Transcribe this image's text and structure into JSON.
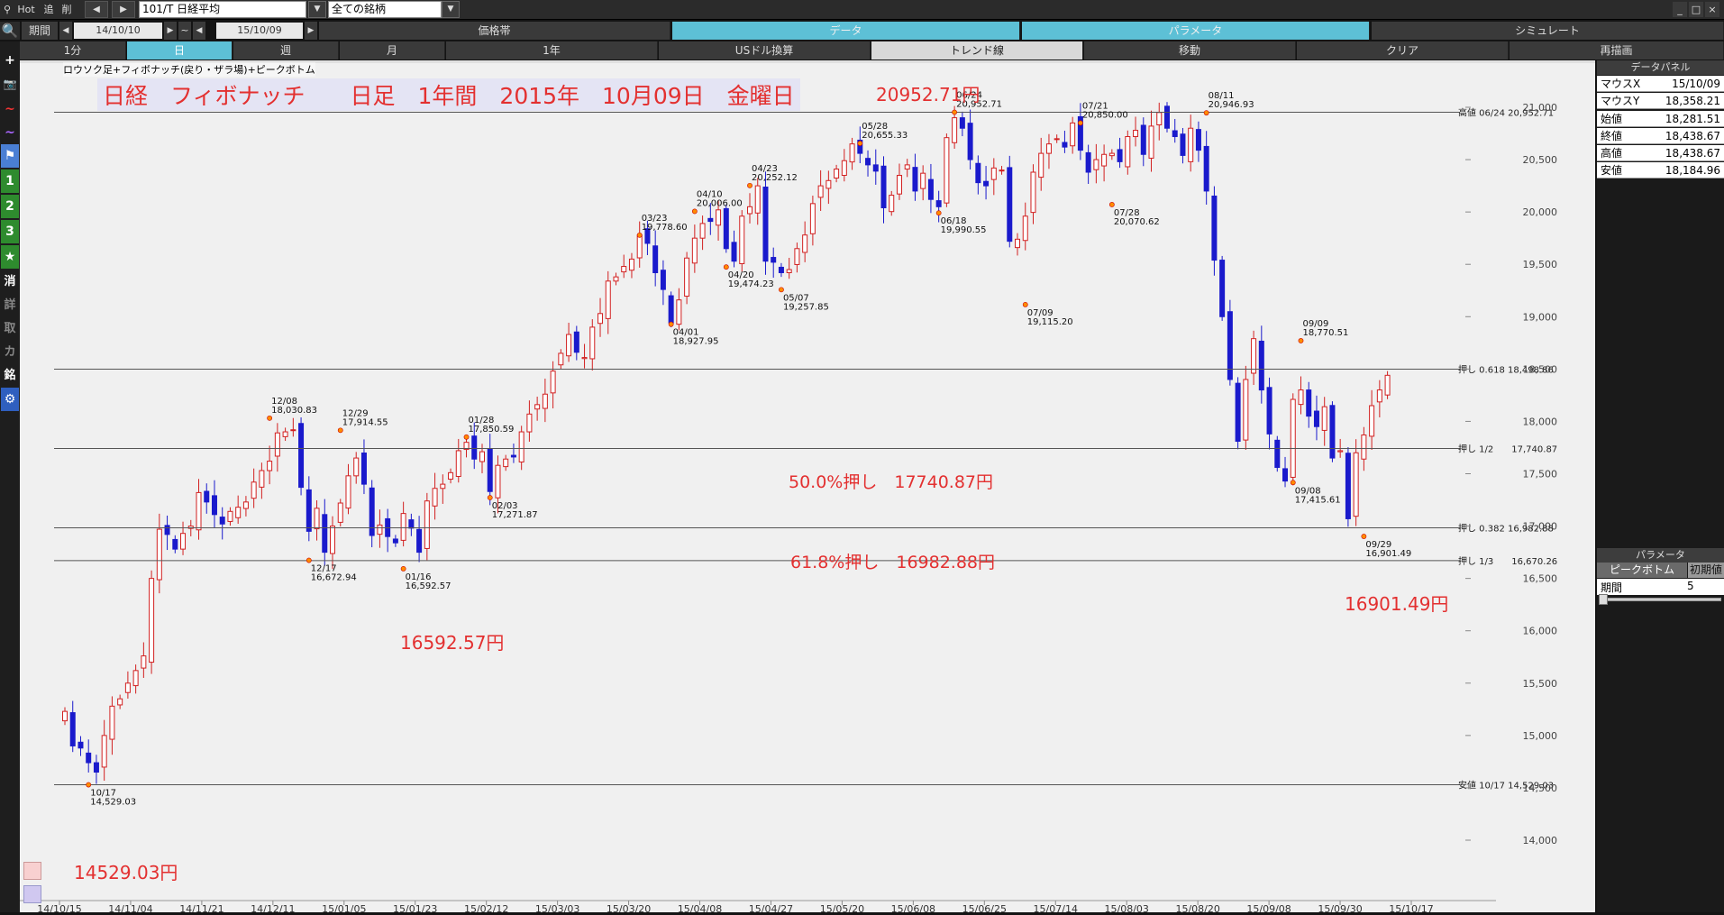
{
  "topbar": {
    "hot": "Hot",
    "add": "追",
    "del": "削",
    "prev": "◀",
    "next": "▶",
    "symbol": "101/T 日経平均",
    "universe": "全ての銘柄",
    "dd": "▼"
  },
  "window_controls": {
    "min": "_",
    "max": "□",
    "close": "×"
  },
  "dates": {
    "label": "期間",
    "from": "14/10/10",
    "tilde": "~",
    "to": "15/10/09"
  },
  "tabs_main": [
    {
      "label": "価格帯",
      "active": false
    },
    {
      "label": "データ",
      "active": true
    },
    {
      "label": "パラメータ",
      "active": true
    },
    {
      "label": "シミュレート",
      "active": false
    }
  ],
  "tabs_period": [
    {
      "label": "1分"
    },
    {
      "label": "日"
    },
    {
      "label": "週"
    },
    {
      "label": "月"
    },
    {
      "label": "1年"
    },
    {
      "label": "USドル換算"
    },
    {
      "label": "トレンド線"
    },
    {
      "label": "移動"
    },
    {
      "label": "クリア"
    },
    {
      "label": "再描画"
    }
  ],
  "left_tools": [
    "🔍",
    "+",
    "📷",
    "~",
    "~",
    "⚑",
    "1",
    "2",
    "3",
    "★",
    "消",
    "詳",
    "取",
    "カ",
    "銘",
    "⚙"
  ],
  "chart_data": {
    "type": "candlestick",
    "subtitle": "ロウソク足+フィボナッチ(戻り・ザラ場)+ピークボトム",
    "title": "日経　フィボナッチ　　日足　1年間　2015年　10月09日　金曜日",
    "ylim": [
      14000,
      21300
    ],
    "yticks": [
      "21,000",
      "20,500",
      "20,000",
      "19,500",
      "19,000",
      "18,500",
      "18,000",
      "17,500",
      "17,000",
      "16,500",
      "16,000",
      "15,500",
      "15,000",
      "14,500",
      "14,000"
    ],
    "xticks": [
      "14/10/15",
      "14/11/04",
      "14/11/21",
      "14/12/11",
      "15/01/05",
      "15/01/23",
      "15/02/12",
      "15/03/03",
      "15/03/20",
      "15/04/08",
      "15/04/27",
      "15/05/20",
      "15/06/08",
      "15/06/25",
      "15/07/14",
      "15/08/03",
      "15/08/20",
      "15/09/08",
      "15/09/30",
      "15/10/17"
    ],
    "series_close": [
      15230,
      14900,
      14880,
      14740,
      14650,
      15000,
      15280,
      15350,
      15500,
      15620,
      15760,
      16500,
      16970,
      16920,
      16780,
      16930,
      17000,
      17320,
      17230,
      17110,
      17020,
      17140,
      17180,
      17230,
      17420,
      17530,
      17620,
      17890,
      17900,
      17920,
      17370,
      16950,
      17170,
      16750,
      17000,
      17220,
      17480,
      17650,
      17400,
      16910,
      17010,
      16900,
      16840,
      17120,
      16980,
      16750,
      17240,
      17360,
      17400,
      17510,
      17720,
      17800,
      17640,
      17710,
      17330,
      17580,
      17640,
      17660,
      17900,
      18070,
      18160,
      18260,
      18480,
      18650,
      18830,
      18660,
      18610,
      18900,
      19030,
      19340,
      19380,
      19480,
      19550,
      19780,
      19700,
      19420,
      19260,
      18940,
      19160,
      19560,
      19750,
      19890,
      19910,
      20020,
      19650,
      19530,
      19960,
      20050,
      20250,
      19530,
      19520,
      19420,
      19450,
      19650,
      19780,
      20080,
      20250,
      20300,
      20410,
      20490,
      20650,
      20560,
      20450,
      20390,
      20040,
      20160,
      20350,
      20450,
      20200,
      20370,
      20120,
      20050,
      20710,
      20900,
      20800,
      20500,
      20280,
      20250,
      20420,
      20400,
      19720,
      19740,
      19960,
      20380,
      20560,
      20650,
      20700,
      20620,
      20850,
      20590,
      20380,
      20500,
      20550,
      20560,
      20480,
      20720,
      20780,
      20550,
      20820,
      20950,
      20800,
      20720,
      20540,
      20800,
      20590,
      20200,
      19540,
      19000,
      18400,
      17810,
      18400,
      18790,
      18300,
      17880,
      17560,
      17430,
      18210,
      18300,
      18050,
      17950,
      18140,
      17650,
      17720,
      17070,
      17700,
      17870,
      18150,
      18300,
      18440
    ],
    "annotations": [
      {
        "date": "06/24",
        "value": "20,952.71",
        "big": "20952.71円"
      },
      {
        "date": "08/11",
        "value": "20,946.93"
      },
      {
        "date": "07/21",
        "value": "20,850.00"
      },
      {
        "date": "05/28",
        "value": "20,655.33"
      },
      {
        "date": "04/23",
        "value": "20,252.12"
      },
      {
        "date": "04/10",
        "value": "20,006.00"
      },
      {
        "date": "03/23",
        "value": "19,778.60"
      },
      {
        "date": "06/18",
        "value": "19,990.55"
      },
      {
        "date": "07/28",
        "value": "20,070.62"
      },
      {
        "date": "04/20",
        "value": "19,474.23"
      },
      {
        "date": "05/07",
        "value": "19,257.85"
      },
      {
        "date": "07/09",
        "value": "19,115.20"
      },
      {
        "date": "04/01",
        "value": "18,927.95"
      },
      {
        "date": "09/09",
        "value": "18,770.51"
      },
      {
        "date": "12/08",
        "value": "18,030.83"
      },
      {
        "date": "12/29",
        "value": "17,914.55"
      },
      {
        "date": "01/28",
        "value": "17,850.59"
      },
      {
        "date": "02/03",
        "value": "17,271.87"
      },
      {
        "date": "09/08",
        "value": "17,415.61"
      },
      {
        "date": "12/17",
        "value": "16,672.94"
      },
      {
        "date": "01/16",
        "value": "16,592.57",
        "big": "16592.57円"
      },
      {
        "date": "09/29",
        "value": "16,901.49",
        "big": "16901.49円"
      },
      {
        "date": "10/17",
        "value": "14,529.03",
        "big": "14529.03円"
      }
    ],
    "levels": [
      {
        "label": "高値 06/24 20,952.71",
        "value": 20952.71
      },
      {
        "label": "押し 0.618 18,498.86",
        "value": 18498.86
      },
      {
        "label": "押し 1/2　　17,740.87",
        "value": 17740.87,
        "note": "50.0%押し　17740.87円"
      },
      {
        "label": "押し 0.382 16,982.88",
        "value": 16982.88,
        "note": "61.8%押し　16982.88円"
      },
      {
        "label": "押し 1/3　　16,670.26",
        "value": 16670.26
      },
      {
        "label": "安値 10/17 14,529.03",
        "value": 14529.03
      }
    ],
    "colors": {
      "up": "#d22020",
      "down": "#1a1acc",
      "bg": "#f0f0f0",
      "annot": "#e33030"
    }
  },
  "data_panel": {
    "title": "データパネル",
    "rows": [
      {
        "k": "マウスX",
        "v": "15/10/09"
      },
      {
        "k": "マウスY",
        "v": "18,358.21"
      },
      {
        "k": "始値",
        "v": "18,281.51"
      },
      {
        "k": "終値",
        "v": "18,438.67"
      },
      {
        "k": "高値",
        "v": "18,438.67"
      },
      {
        "k": "安値",
        "v": "18,184.96"
      }
    ]
  },
  "param_panel": {
    "title": "パラメータ",
    "tab1": "ピークボトム",
    "tab2": "初期値",
    "label": "期間",
    "value": "5"
  }
}
